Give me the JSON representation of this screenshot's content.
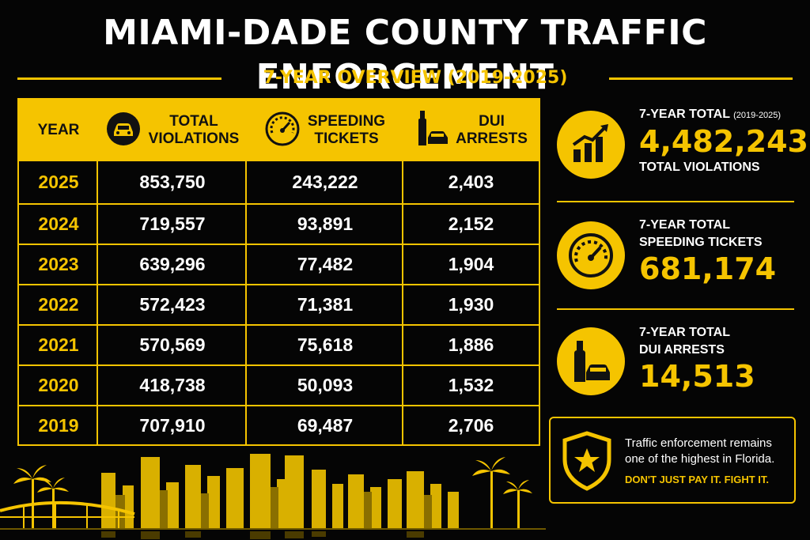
{
  "title": "MIAMI-DADE COUNTY TRAFFIC ENFORCEMENT",
  "subtitle": "7-YEAR OVERVIEW (2019-2025)",
  "table": {
    "headers": {
      "year": "YEAR",
      "total_violations": [
        "TOTAL",
        "VIOLATIONS"
      ],
      "speeding_tickets": [
        "SPEEDING",
        "TICKETS"
      ],
      "dui_arrests": [
        "DUI",
        "ARRESTS"
      ]
    },
    "rows": [
      {
        "year": "2025",
        "total": "853,750",
        "speeding": "243,222",
        "dui": "2,403"
      },
      {
        "year": "2024",
        "total": "719,557",
        "speeding": "93,891",
        "dui": "2,152"
      },
      {
        "year": "2023",
        "total": "639,296",
        "speeding": "77,482",
        "dui": "1,904"
      },
      {
        "year": "2022",
        "total": "572,423",
        "speeding": "71,381",
        "dui": "1,930"
      },
      {
        "year": "2021",
        "total": "570,569",
        "speeding": "75,618",
        "dui": "1,886"
      },
      {
        "year": "2020",
        "total": "418,738",
        "speeding": "50,093",
        "dui": "1,532"
      },
      {
        "year": "2019",
        "total": "707,910",
        "speeding": "69,487",
        "dui": "2,706"
      }
    ]
  },
  "stats": {
    "total": {
      "label": "7-YEAR TOTAL",
      "range": "(2019-2025)",
      "value": "4,482,243",
      "sub": "TOTAL VIOLATIONS",
      "icon": "growth-chart-icon"
    },
    "speeding": {
      "label1": "7-YEAR TOTAL",
      "label2": "SPEEDING TICKETS",
      "value": "681,174",
      "icon": "speedometer-icon"
    },
    "dui": {
      "label1": "7-YEAR TOTAL",
      "label2": "DUI ARRESTS",
      "value": "14,513",
      "icon": "bottle-car-icon"
    }
  },
  "callout": {
    "message": "Traffic enforcement remains one of the highest in Florida.",
    "cta": "DON'T JUST PAY IT. FIGHT IT.",
    "icon": "shield-star-icon"
  },
  "colors": {
    "accent": "#f5c400",
    "background": "#050505",
    "text": "#ffffff"
  }
}
